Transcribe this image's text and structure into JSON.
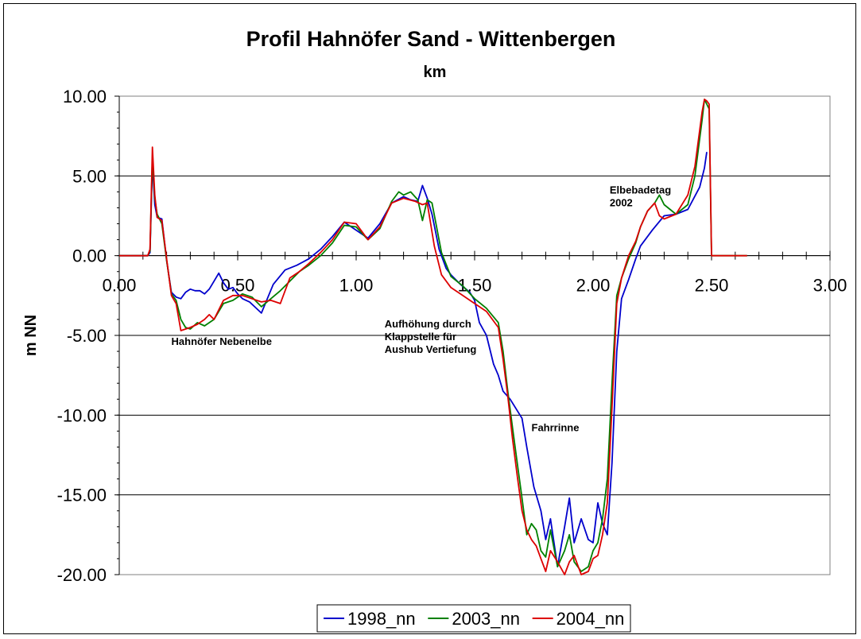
{
  "chart_data": {
    "type": "line",
    "title": "Profil Hahnöfer Sand - Wittenbergen",
    "xlabel": "km",
    "ylabel": "m NN",
    "xlim": [
      0,
      3
    ],
    "ylim": [
      -20,
      10
    ],
    "x_ticks": [
      "0.00",
      "0.50",
      "1.00",
      "1.50",
      "2.00",
      "2.50",
      "3.00"
    ],
    "y_ticks": [
      "10.00",
      "5.00",
      "0.00",
      "-5.00",
      "-10.00",
      "-15.00",
      "-20.00"
    ],
    "grid": "horizontal major",
    "legend_position": "bottom",
    "annotations": [
      {
        "lines": [
          "Hahnöfer Nebenelbe"
        ],
        "x": 0.22,
        "y": -5.6
      },
      {
        "lines": [
          "Aufhöhung durch",
          "Klappstelle für",
          "Aushub Vertiefung"
        ],
        "x": 1.12,
        "y": -4.5
      },
      {
        "lines": [
          "Fahrrinne"
        ],
        "x": 1.74,
        "y": -11.0
      },
      {
        "lines": [
          "Elbebadetag",
          "2002"
        ],
        "x": 2.07,
        "y": 3.9
      }
    ],
    "series": [
      {
        "name": "1998_nn",
        "color": "#0000CC",
        "x": [
          0.0,
          0.12,
          0.13,
          0.14,
          0.15,
          0.16,
          0.18,
          0.2,
          0.22,
          0.24,
          0.26,
          0.28,
          0.3,
          0.32,
          0.34,
          0.36,
          0.38,
          0.4,
          0.42,
          0.44,
          0.46,
          0.48,
          0.5,
          0.52,
          0.55,
          0.6,
          0.65,
          0.7,
          0.75,
          0.8,
          0.85,
          0.9,
          0.95,
          1.0,
          1.05,
          1.1,
          1.15,
          1.2,
          1.23,
          1.26,
          1.28,
          1.3,
          1.32,
          1.35,
          1.38,
          1.4,
          1.44,
          1.48,
          1.5,
          1.52,
          1.55,
          1.58,
          1.6,
          1.62,
          1.65,
          1.7,
          1.72,
          1.75,
          1.78,
          1.8,
          1.82,
          1.85,
          1.88,
          1.9,
          1.92,
          1.95,
          1.98,
          2.0,
          2.02,
          2.04,
          2.06,
          2.08,
          2.1,
          2.12,
          2.15,
          2.18,
          2.2,
          2.25,
          2.3,
          2.35,
          2.4,
          2.45,
          2.47,
          2.48
        ],
        "y": [
          0.0,
          0.0,
          0.2,
          5.8,
          3.2,
          2.4,
          2.3,
          -0.3,
          -2.3,
          -2.6,
          -2.7,
          -2.3,
          -2.1,
          -2.2,
          -2.2,
          -2.4,
          -2.1,
          -1.6,
          -1.1,
          -1.7,
          -2.1,
          -2.0,
          -2.4,
          -2.7,
          -2.9,
          -3.6,
          -1.8,
          -0.9,
          -0.6,
          -0.2,
          0.4,
          1.2,
          2.1,
          1.6,
          1.1,
          2.0,
          3.3,
          3.7,
          3.5,
          3.4,
          4.4,
          3.6,
          2.6,
          0.4,
          -0.8,
          -1.2,
          -1.8,
          -2.3,
          -2.8,
          -4.2,
          -5.0,
          -6.8,
          -7.5,
          -8.5,
          -9.0,
          -10.2,
          -12.0,
          -14.5,
          -16.0,
          -17.8,
          -16.5,
          -19.5,
          -17.0,
          -15.2,
          -18.0,
          -16.5,
          -17.8,
          -18.0,
          -15.5,
          -16.8,
          -17.5,
          -13.0,
          -6.0,
          -2.7,
          -1.5,
          -0.2,
          0.6,
          1.6,
          2.5,
          2.6,
          2.9,
          4.3,
          5.5,
          6.5
        ]
      },
      {
        "name": "2003_nn",
        "color": "#008000",
        "x": [
          0.0,
          0.12,
          0.13,
          0.14,
          0.15,
          0.16,
          0.18,
          0.2,
          0.22,
          0.24,
          0.26,
          0.28,
          0.3,
          0.33,
          0.36,
          0.4,
          0.44,
          0.48,
          0.52,
          0.56,
          0.6,
          0.64,
          0.68,
          0.72,
          0.76,
          0.8,
          0.85,
          0.9,
          0.95,
          1.0,
          1.05,
          1.1,
          1.15,
          1.18,
          1.2,
          1.23,
          1.26,
          1.28,
          1.3,
          1.32,
          1.36,
          1.4,
          1.45,
          1.5,
          1.55,
          1.6,
          1.62,
          1.64,
          1.66,
          1.68,
          1.7,
          1.72,
          1.74,
          1.76,
          1.78,
          1.8,
          1.82,
          1.85,
          1.88,
          1.9,
          1.92,
          1.95,
          1.98,
          2.0,
          2.02,
          2.04,
          2.06,
          2.08,
          2.1,
          2.12,
          2.15,
          2.18,
          2.2,
          2.23,
          2.26,
          2.28,
          2.3,
          2.35,
          2.4,
          2.43,
          2.46,
          2.47,
          2.48,
          2.49,
          2.5,
          2.52,
          2.55,
          2.6,
          2.62,
          2.65
        ],
        "y": [
          0.0,
          0.0,
          0.3,
          6.2,
          3.6,
          2.6,
          2.0,
          -0.3,
          -2.4,
          -2.8,
          -4.0,
          -4.5,
          -4.6,
          -4.2,
          -4.4,
          -4.0,
          -3.0,
          -2.8,
          -2.4,
          -2.6,
          -3.2,
          -2.7,
          -2.2,
          -1.6,
          -1.0,
          -0.6,
          0.0,
          0.8,
          1.9,
          1.8,
          1.0,
          1.7,
          3.4,
          4.0,
          3.8,
          4.0,
          3.5,
          2.2,
          3.5,
          3.3,
          0.2,
          -1.3,
          -1.9,
          -2.7,
          -3.3,
          -4.2,
          -6.0,
          -8.5,
          -10.8,
          -13.0,
          -15.2,
          -17.5,
          -16.8,
          -17.2,
          -18.5,
          -18.9,
          -17.2,
          -19.5,
          -18.5,
          -17.5,
          -19.2,
          -19.8,
          -19.5,
          -18.5,
          -18.0,
          -16.5,
          -14.0,
          -8.0,
          -2.5,
          -1.4,
          -0.2,
          0.8,
          1.8,
          2.8,
          3.3,
          3.8,
          3.2,
          2.6,
          3.2,
          5.0,
          8.5,
          9.8,
          9.5,
          9.2,
          0.0,
          0.0,
          0.0,
          0.0,
          0.0,
          0.0
        ],
        "y_note": ""
      },
      {
        "name": "2004_nn",
        "color": "#DD0000",
        "x": [
          0.0,
          0.12,
          0.13,
          0.14,
          0.15,
          0.16,
          0.18,
          0.2,
          0.22,
          0.24,
          0.26,
          0.28,
          0.3,
          0.33,
          0.36,
          0.38,
          0.4,
          0.44,
          0.48,
          0.52,
          0.56,
          0.6,
          0.64,
          0.68,
          0.72,
          0.76,
          0.8,
          0.85,
          0.9,
          0.95,
          1.0,
          1.05,
          1.1,
          1.15,
          1.2,
          1.25,
          1.28,
          1.3,
          1.33,
          1.36,
          1.4,
          1.45,
          1.5,
          1.55,
          1.6,
          1.62,
          1.64,
          1.66,
          1.68,
          1.7,
          1.72,
          1.74,
          1.76,
          1.78,
          1.8,
          1.82,
          1.85,
          1.88,
          1.9,
          1.92,
          1.95,
          1.98,
          2.0,
          2.02,
          2.04,
          2.06,
          2.08,
          2.1,
          2.12,
          2.15,
          2.18,
          2.2,
          2.23,
          2.26,
          2.28,
          2.3,
          2.35,
          2.4,
          2.43,
          2.46,
          2.47,
          2.48,
          2.49,
          2.5,
          2.52,
          2.55,
          2.6,
          2.62,
          2.65
        ],
        "y": [
          0.0,
          0.0,
          0.4,
          6.8,
          3.8,
          2.4,
          2.2,
          -0.2,
          -2.5,
          -3.0,
          -4.7,
          -4.6,
          -4.5,
          -4.3,
          -4.0,
          -3.7,
          -4.0,
          -2.8,
          -2.5,
          -2.5,
          -2.7,
          -2.9,
          -2.8,
          -3.0,
          -1.4,
          -1.0,
          -0.5,
          0.2,
          1.0,
          2.1,
          2.0,
          1.0,
          1.8,
          3.3,
          3.6,
          3.4,
          3.2,
          3.3,
          0.6,
          -1.2,
          -2.0,
          -2.5,
          -3.0,
          -3.5,
          -4.5,
          -6.5,
          -8.8,
          -11.5,
          -13.8,
          -16.0,
          -17.2,
          -17.8,
          -18.2,
          -19.0,
          -19.8,
          -18.5,
          -19.2,
          -20.0,
          -19.2,
          -18.8,
          -20.0,
          -19.8,
          -19.0,
          -18.8,
          -17.5,
          -15.5,
          -9.5,
          -3.0,
          -1.4,
          0.0,
          0.9,
          1.8,
          2.8,
          3.3,
          2.5,
          2.3,
          2.6,
          3.8,
          5.6,
          9.0,
          9.8,
          9.7,
          9.5,
          0.0,
          0.0,
          0.0,
          0.0,
          0.0,
          0.0
        ]
      }
    ]
  }
}
